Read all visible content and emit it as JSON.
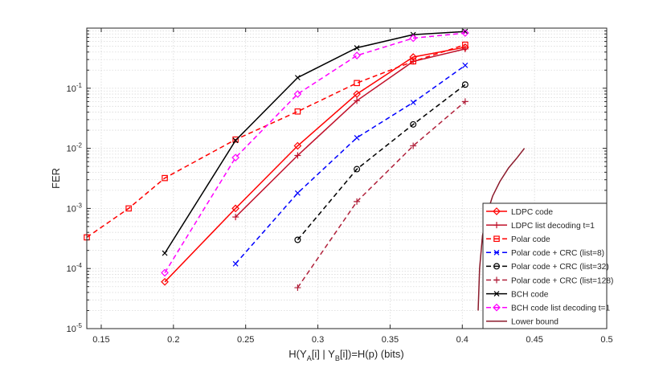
{
  "chart_data": {
    "type": "line",
    "xlabel": "H(Y_A[i] | Y_B[i])=H(p) (bits)",
    "ylabel": "FER",
    "xlim": [
      0.14,
      0.5
    ],
    "ylim": [
      1e-05,
      1
    ],
    "yscale": "log",
    "grid": true,
    "legend_position": "bottom-right",
    "x_ticks": [
      0.15,
      0.2,
      0.25,
      0.3,
      0.35,
      0.4,
      0.45,
      0.5
    ],
    "x_tick_labels": [
      "0.15",
      "0.2",
      "0.25",
      "0.3",
      "0.35",
      "0.4",
      "0.45",
      "0.5"
    ],
    "y_ticks": [
      1e-05,
      0.0001,
      0.001,
      0.01,
      0.1
    ],
    "y_tick_labels": [
      {
        "base": "10",
        "exp": "-5"
      },
      {
        "base": "10",
        "exp": "-4"
      },
      {
        "base": "10",
        "exp": "-3"
      },
      {
        "base": "10",
        "exp": "-2"
      },
      {
        "base": "10",
        "exp": "-1"
      }
    ],
    "series": [
      {
        "name": "LDPC code",
        "color": "#ff0000",
        "dash": "solid",
        "marker": "diamond",
        "x": [
          0.194,
          0.243,
          0.286,
          0.327,
          0.366,
          0.402
        ],
        "y": [
          6e-05,
          0.001,
          0.011,
          0.08,
          0.33,
          0.48
        ]
      },
      {
        "name": "LDPC list decoding t=1",
        "color": "#c0102a",
        "dash": "solid",
        "marker": "plus",
        "x": [
          0.243,
          0.286,
          0.327,
          0.366,
          0.402
        ],
        "y": [
          0.00072,
          0.0076,
          0.062,
          0.28,
          0.45
        ]
      },
      {
        "name": "Polar code",
        "color": "#ff0000",
        "dash": "dashed",
        "marker": "square",
        "x": [
          0.14,
          0.169,
          0.194,
          0.243,
          0.286,
          0.327,
          0.366,
          0.402
        ],
        "y": [
          0.00033,
          0.001,
          0.0032,
          0.014,
          0.041,
          0.122,
          0.28,
          0.53
        ]
      },
      {
        "name": "Polar code + CRC (list=8)",
        "color": "#0000ff",
        "dash": "dashed",
        "marker": "x",
        "x": [
          0.243,
          0.286,
          0.327,
          0.366,
          0.402
        ],
        "y": [
          0.00012,
          0.0018,
          0.015,
          0.058,
          0.24
        ]
      },
      {
        "name": "Polar code + CRC (list=32)",
        "color": "#000000",
        "dash": "dashed",
        "marker": "circle",
        "x": [
          0.286,
          0.327,
          0.366,
          0.402
        ],
        "y": [
          0.0003,
          0.0045,
          0.025,
          0.115
        ]
      },
      {
        "name": "Polar code + CRC (list=128)",
        "color": "#b0203a",
        "dash": "dashed",
        "marker": "plus",
        "x": [
          0.286,
          0.327,
          0.366,
          0.402
        ],
        "y": [
          4.8e-05,
          0.0013,
          0.011,
          0.06
        ]
      },
      {
        "name": "BCH code",
        "color": "#000000",
        "dash": "solid",
        "marker": "x",
        "x": [
          0.194,
          0.243,
          0.286,
          0.327,
          0.366,
          0.402
        ],
        "y": [
          0.00018,
          0.0135,
          0.15,
          0.47,
          0.78,
          0.88
        ]
      },
      {
        "name": "BCH code list decoding t=1",
        "color": "#ff00ff",
        "dash": "dashed",
        "marker": "diamond",
        "x": [
          0.194,
          0.243,
          0.286,
          0.327,
          0.366,
          0.402
        ],
        "y": [
          8.5e-05,
          0.007,
          0.08,
          0.35,
          0.68,
          0.83
        ]
      },
      {
        "name": "Lower bound",
        "color": "#8b1a2b",
        "dash": "solid",
        "marker": "none",
        "x": [
          0.411,
          0.412,
          0.414,
          0.417,
          0.421,
          0.426,
          0.432,
          0.438,
          0.443
        ],
        "y": [
          2e-05,
          0.0001,
          0.00035,
          0.0008,
          0.0016,
          0.0028,
          0.0047,
          0.007,
          0.01
        ]
      }
    ]
  }
}
